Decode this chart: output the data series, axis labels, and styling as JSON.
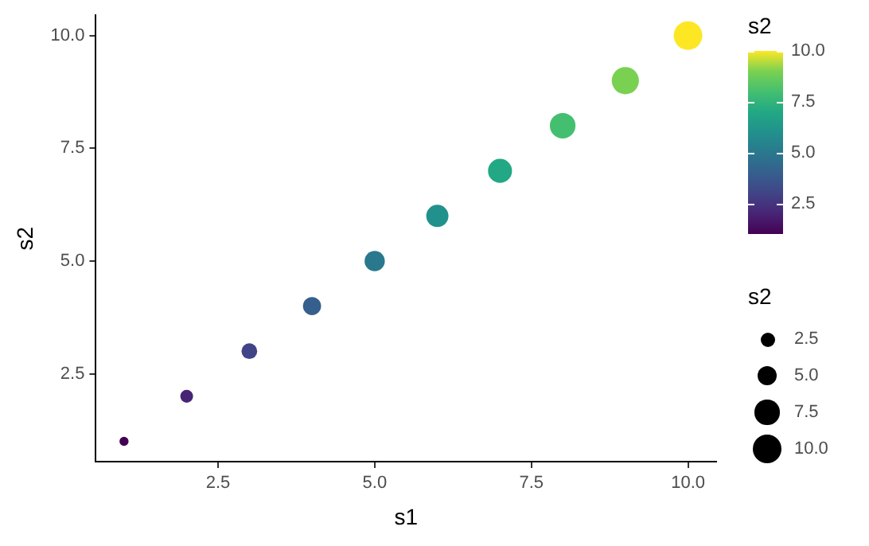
{
  "chart_data": {
    "type": "bubble",
    "xlabel": "s1",
    "ylabel": "s2",
    "clabel": "s2",
    "legend_title": "s2",
    "x": [
      1,
      2,
      3,
      4,
      5,
      6,
      7,
      8,
      9,
      10
    ],
    "values": [
      1,
      2,
      3,
      4,
      5,
      6,
      7,
      8,
      9,
      10
    ],
    "sizes": [
      1,
      2,
      3,
      4,
      5,
      6,
      7,
      8,
      9,
      10
    ],
    "cvalues": [
      1,
      2,
      3,
      4,
      5,
      6,
      7,
      8,
      9,
      10
    ],
    "colors": [
      "#440154",
      "#482475",
      "#414487",
      "#355f8d",
      "#2a788e",
      "#21918c",
      "#22a884",
      "#44bf70",
      "#7ad151",
      "#fde725"
    ],
    "size_legend": [
      {
        "value": 2.5,
        "label": "2.5"
      },
      {
        "value": 5,
        "label": "5.0"
      },
      {
        "value": 7.5,
        "label": "7.5"
      },
      {
        "value": 10,
        "label": "10.0"
      }
    ],
    "clim": [
      1,
      10
    ],
    "cticks": [
      {
        "value": 2.5,
        "label": "2.5"
      },
      {
        "value": 5,
        "label": "5.0"
      },
      {
        "value": 7.5,
        "label": "7.5"
      },
      {
        "value": 10,
        "label": "10.0"
      }
    ],
    "xlim": [
      0.55,
      10.45
    ],
    "ylim": [
      0.55,
      10.45
    ],
    "xticks": [
      {
        "value": 2.5,
        "label": "2.5"
      },
      {
        "value": 5,
        "label": "5.0"
      },
      {
        "value": 7.5,
        "label": "7.5"
      },
      {
        "value": 10,
        "label": "10.0"
      }
    ],
    "yticks": [
      {
        "value": 2.5,
        "label": "2.5"
      },
      {
        "value": 5,
        "label": "5.0"
      },
      {
        "value": 7.5,
        "label": "7.5"
      },
      {
        "value": 10,
        "label": "10.0"
      }
    ]
  }
}
